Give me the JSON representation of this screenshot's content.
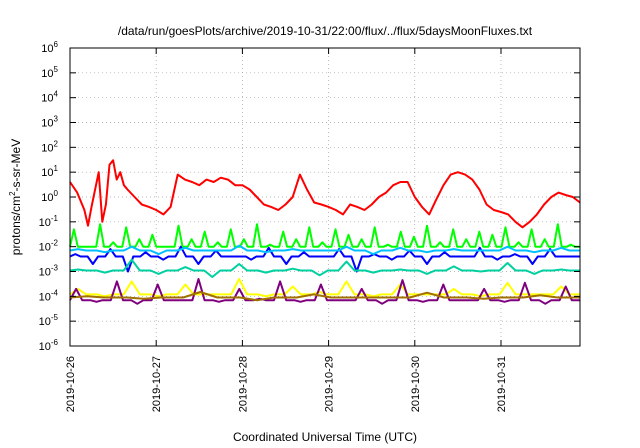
{
  "chart_data": {
    "type": "line",
    "title": "/data/run/goesPlots/archive/2019-10-31/22:00/flux/../flux/5daysMoonFluxes.txt",
    "xlabel": "Coordinated Universal Time (UTC)",
    "ylabel": {
      "base": "protons/cm",
      "sup": "2",
      "rest": "-s-sr-MeV"
    },
    "y_scale": "log",
    "ylim": [
      1e-06,
      1000000.0
    ],
    "y_ticks": [
      {
        "exp": "-6"
      },
      {
        "exp": "-5"
      },
      {
        "exp": "-4"
      },
      {
        "exp": "-3"
      },
      {
        "exp": "-2"
      },
      {
        "exp": "-1"
      },
      {
        "exp": "0"
      },
      {
        "exp": "1"
      },
      {
        "exp": "2"
      },
      {
        "exp": "3"
      },
      {
        "exp": "4"
      },
      {
        "exp": "5"
      },
      {
        "exp": "6"
      }
    ],
    "y_tick_base": "10",
    "xlim": [
      "2019-10-26",
      "2019-10-31T22:00"
    ],
    "x_ticks": [
      "2019-10-26",
      "2019-10-27",
      "2019-10-28",
      "2019-10-29",
      "2019-10-30",
      "2019-10-31"
    ],
    "grid": true,
    "legend": "none",
    "series": [
      {
        "color": "#ff0000",
        "x": [
          "2019-10-26T00:00",
          "2019-10-26T02:00",
          "2019-10-26T04:00",
          "2019-10-26T05:00",
          "2019-10-26T06:00",
          "2019-10-26T08:00",
          "2019-10-26T09:00",
          "2019-10-26T10:00",
          "2019-10-26T11:00",
          "2019-10-26T12:00",
          "2019-10-26T13:00",
          "2019-10-26T14:00",
          "2019-10-26T15:00",
          "2019-10-26T16:00",
          "2019-10-26T18:00",
          "2019-10-26T20:00",
          "2019-10-26T22:00",
          "2019-10-27T00:00",
          "2019-10-27T02:00",
          "2019-10-27T04:00",
          "2019-10-27T06:00",
          "2019-10-27T08:00",
          "2019-10-27T10:00",
          "2019-10-27T12:00",
          "2019-10-27T14:00",
          "2019-10-27T16:00",
          "2019-10-27T18:00",
          "2019-10-27T20:00",
          "2019-10-27T22:00",
          "2019-10-28T00:00",
          "2019-10-28T02:00",
          "2019-10-28T04:00",
          "2019-10-28T06:00",
          "2019-10-28T08:00",
          "2019-10-28T10:00",
          "2019-10-28T12:00",
          "2019-10-28T14:00",
          "2019-10-28T16:00",
          "2019-10-28T18:00",
          "2019-10-28T20:00",
          "2019-10-28T22:00",
          "2019-10-29T00:00",
          "2019-10-29T02:00",
          "2019-10-29T04:00",
          "2019-10-29T06:00",
          "2019-10-29T08:00",
          "2019-10-29T10:00",
          "2019-10-29T12:00",
          "2019-10-29T14:00",
          "2019-10-29T16:00",
          "2019-10-29T18:00",
          "2019-10-29T20:00",
          "2019-10-29T22:00",
          "2019-10-30T00:00",
          "2019-10-30T02:00",
          "2019-10-30T04:00",
          "2019-10-30T06:00",
          "2019-10-30T08:00",
          "2019-10-30T10:00",
          "2019-10-30T12:00",
          "2019-10-30T14:00",
          "2019-10-30T16:00",
          "2019-10-30T18:00",
          "2019-10-30T20:00",
          "2019-10-30T22:00",
          "2019-10-31T00:00",
          "2019-10-31T02:00",
          "2019-10-31T04:00",
          "2019-10-31T06:00",
          "2019-10-31T08:00",
          "2019-10-31T10:00",
          "2019-10-31T12:00",
          "2019-10-31T14:00",
          "2019-10-31T16:00",
          "2019-10-31T18:00",
          "2019-10-31T20:00",
          "2019-10-31T22:00"
        ],
        "y": [
          4,
          1.5,
          0.3,
          0.07,
          0.4,
          10,
          0.1,
          0.5,
          20,
          30,
          5,
          10,
          3,
          2,
          1,
          0.5,
          0.4,
          0.3,
          0.2,
          0.4,
          8,
          5,
          4,
          3,
          5,
          4,
          6,
          5,
          3,
          3,
          2,
          1,
          0.5,
          0.4,
          0.3,
          0.5,
          1,
          8,
          2,
          0.6,
          0.5,
          0.4,
          0.3,
          0.2,
          0.5,
          0.4,
          0.3,
          0.5,
          1,
          1.5,
          3,
          4,
          4,
          1,
          0.4,
          0.2,
          0.8,
          3,
          8,
          10,
          8,
          5,
          2,
          0.5,
          0.3,
          0.25,
          0.2,
          0.1,
          0.06,
          0.1,
          0.2,
          0.5,
          1,
          1.5,
          1.2,
          1,
          0.6
        ]
      },
      {
        "color": "#00ff00",
        "base": 0.01,
        "spikes": [
          0.05,
          0.01,
          0.08,
          0.015,
          0.06,
          0.02,
          0.03,
          0.01,
          0.07,
          0.02,
          0.04,
          0.015,
          0.05,
          0.02,
          0.08,
          0.012,
          0.04,
          0.02,
          0.06,
          0.015,
          0.05,
          0.03,
          0.02,
          0.06,
          0.012,
          0.04,
          0.025,
          0.07,
          0.015,
          0.05,
          0.02,
          0.04,
          0.03,
          0.06,
          0.015,
          0.05,
          0.02,
          0.08,
          0.012,
          0.04
        ]
      },
      {
        "color": "#0000ff",
        "base": 0.004,
        "spikes": [
          0.005,
          0.002,
          0.008,
          0.001,
          0.006,
          0.003,
          0.01,
          0.002,
          0.007,
          0.004,
          0.003,
          0.009,
          0.002,
          0.006,
          0.004,
          0.008,
          0.001,
          0.005,
          0.003,
          0.007,
          0.002,
          0.006,
          0.004,
          0.009,
          0.003,
          0.005,
          0.002,
          0.008,
          0.004,
          0.006
        ]
      },
      {
        "color": "#00bfff",
        "base": 0.007,
        "spikes": [
          0.008,
          0.006,
          0.01,
          0.005,
          0.009,
          0.007,
          0.011,
          0.006,
          0.008,
          0.007,
          0.01,
          0.005,
          0.009,
          0.006,
          0.008,
          0.007,
          0.01,
          0.006,
          0.009,
          0.007
        ]
      },
      {
        "color": "#00d0a0",
        "base": 0.0011,
        "spikes": [
          0.0012,
          0.0009,
          0.003,
          0.0008,
          0.0015,
          0.0006,
          0.002,
          0.0009,
          0.0013,
          0.0007,
          0.0025,
          0.0009,
          0.0012,
          0.0008,
          0.0016,
          0.001,
          0.0022,
          0.0008,
          0.0012,
          0.001
        ]
      },
      {
        "color": "#ffff00",
        "base": 0.00012,
        "spikes": [
          0.0002,
          0.0001,
          0.0004,
          0.0001,
          0.0003,
          0.00012,
          0.0005,
          0.0001,
          0.00025,
          0.00015,
          0.0004,
          0.0001,
          0.0003,
          0.00012,
          0.0002,
          0.0001,
          0.00035,
          0.00012,
          0.00025,
          0.0001
        ]
      },
      {
        "color": "#7f007f",
        "base": 7e-05,
        "spikes": [
          0.0002,
          6e-05,
          0.0004,
          5e-05,
          0.0003,
          7e-05,
          0.0005,
          6e-05,
          0.0002,
          8e-05,
          0.0004,
          6e-05,
          0.0003,
          7e-05,
          0.0002,
          5e-05,
          0.00045,
          6e-05,
          0.0003,
          7e-05,
          0.0002,
          6e-05,
          0.00035,
          5e-05,
          0.00025,
          7e-05
        ]
      },
      {
        "color": "#a07000",
        "base": 9e-05,
        "spikes": [
          0.0001,
          8e-05,
          0.00015,
          7e-05,
          0.00012,
          9e-05,
          0.00014,
          8e-05,
          0.00011,
          9e-05
        ]
      }
    ]
  }
}
